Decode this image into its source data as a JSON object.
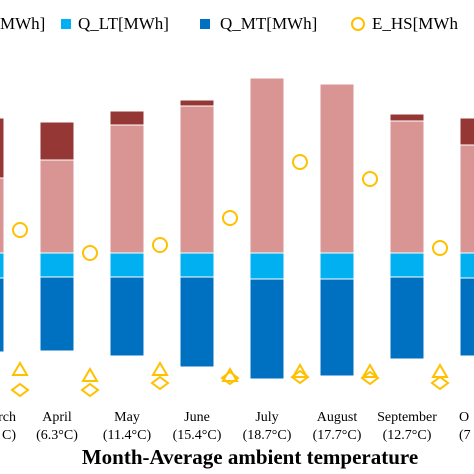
{
  "chart_data": {
    "type": "bar",
    "x_label": "Month-Average ambient temperature",
    "categories": [
      "rch",
      "April",
      "May",
      "June",
      "July",
      "August",
      "September",
      "O"
    ],
    "category_temps": [
      "C)",
      "(6.3°C)",
      "(11.4°C)",
      "(15.4°C)",
      "(18.7°C)",
      "(17.7°C)",
      "(12.7°C)",
      "(7"
    ],
    "ylim": [
      -147,
      183
    ],
    "series": [
      {
        "name": "MWh]",
        "color": "#d99594",
        "values": [
          75,
          93,
          128,
          147,
          175,
          169,
          132,
          108
        ]
      },
      {
        "color": "#953735",
        "values": [
          60,
          38,
          14,
          6,
          0,
          0,
          7,
          27
        ]
      },
      {
        "name": "Q_LT[MWh]",
        "color": "#00b0f0",
        "values": [
          -25,
          -24,
          -24,
          -24,
          -26,
          -26,
          -24,
          -25
        ]
      },
      {
        "name": "Q_MT[MWh]",
        "color": "#0070c0",
        "values": [
          -74,
          -74,
          -79,
          -90,
          -100,
          -97,
          -82,
          -78
        ]
      },
      {
        "name": "E_HS[MWh",
        "color": "#ffc000",
        "marker": "circle",
        "values": [
          23,
          0,
          8,
          35,
          91,
          74,
          5,
          null
        ]
      },
      {
        "color": "#ffc000",
        "marker": "triangle",
        "values": [
          -117,
          -123,
          -117,
          -123,
          -119,
          -119,
          -119,
          null
        ]
      },
      {
        "color": "#ffc000",
        "marker": "diamond",
        "values": [
          -137,
          -137,
          -130,
          -125,
          -124,
          -125,
          -130,
          null
        ]
      }
    ]
  }
}
